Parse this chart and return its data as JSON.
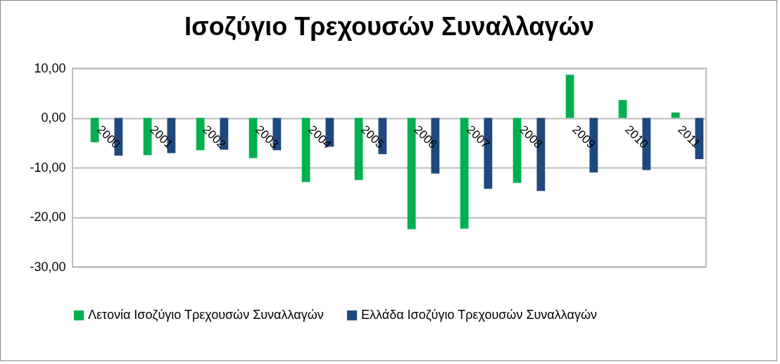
{
  "chart_data": {
    "type": "bar",
    "title": "Ισοζύγιο Τρεχουσών Συναλλαγών",
    "categories": [
      "2000",
      "2001",
      "2002",
      "2003",
      "2004",
      "2005",
      "2006",
      "2007",
      "2008",
      "2009",
      "2010",
      "2011"
    ],
    "series": [
      {
        "name": "Λετονία Ισοζύγιο Τρεχουσών Συναλλαγών",
        "color": "#00b050",
        "values": [
          -4.9,
          -7.5,
          -6.5,
          -8.1,
          -12.9,
          -12.5,
          -22.4,
          -22.3,
          -13.1,
          8.7,
          3.6,
          1.1
        ]
      },
      {
        "name": "Ελλάδα Ισοζύγιο Τρεχουσών Συναλλαγών",
        "color": "#1f497d",
        "values": [
          -7.6,
          -7.1,
          -6.4,
          -6.5,
          -5.8,
          -7.3,
          -11.2,
          -14.3,
          -14.7,
          -11.0,
          -10.5,
          -8.3
        ]
      }
    ],
    "ylim": [
      -30,
      10
    ],
    "yticks": [
      {
        "value": 10,
        "label": "10,00"
      },
      {
        "value": 0,
        "label": "0,00"
      },
      {
        "value": -10,
        "label": "-10,00"
      },
      {
        "value": -20,
        "label": "-20,00"
      },
      {
        "value": -30,
        "label": "-30,00"
      }
    ],
    "grid": "y",
    "legend": "bottom"
  }
}
